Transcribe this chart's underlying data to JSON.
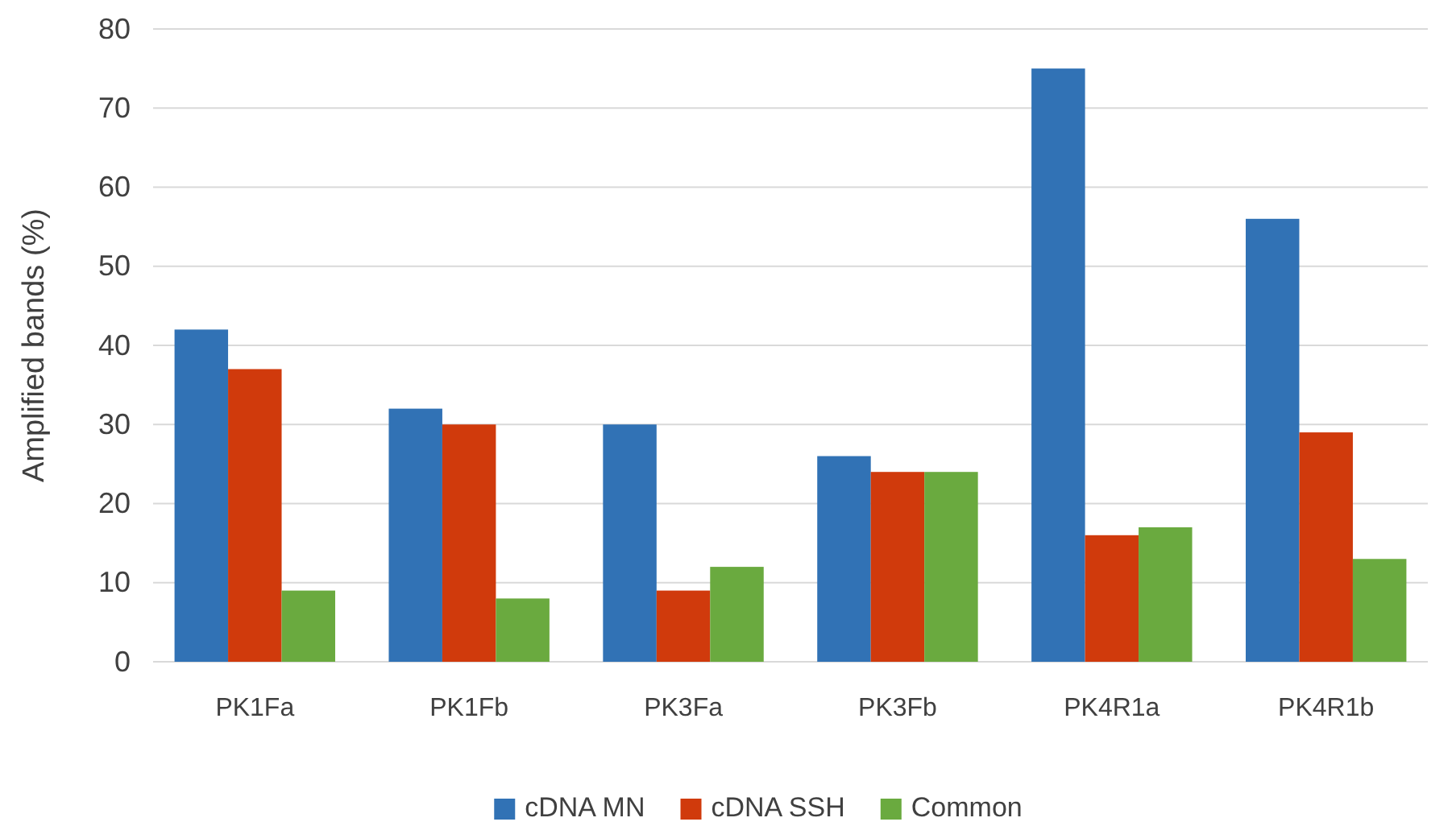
{
  "chart_data": {
    "type": "bar",
    "ylabel": "Amplified bands (%)",
    "categories": [
      "PK1Fa",
      "PK1Fb",
      "PK3Fa",
      "PK3Fb",
      "PK4R1a",
      "PK4R1b"
    ],
    "series": [
      {
        "name": "cDNA MN",
        "color": "#3172b5",
        "values": [
          42,
          32,
          30,
          26,
          75,
          56
        ]
      },
      {
        "name": "cDNA SSH",
        "color": "#d03a0c",
        "values": [
          37,
          30,
          9,
          24,
          16,
          29
        ]
      },
      {
        "name": "Common",
        "color": "#6aaa3f",
        "values": [
          9,
          8,
          12,
          24,
          17,
          13
        ]
      }
    ],
    "ylim": [
      0,
      80
    ],
    "yticks": [
      0,
      10,
      20,
      30,
      40,
      50,
      60,
      70,
      80
    ],
    "grid": "y",
    "legend": "bottom"
  }
}
